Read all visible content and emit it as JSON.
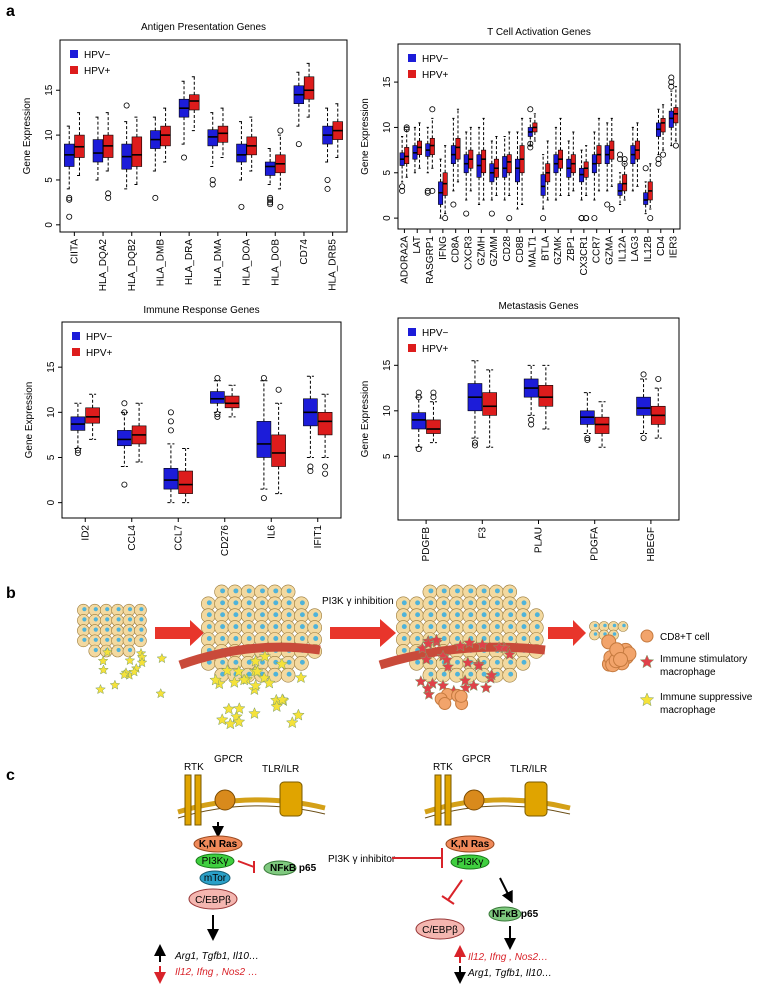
{
  "panels": [
    "a",
    "b",
    "c"
  ],
  "chart_data": [
    {
      "type": "box",
      "title": "Antigen Presentation Genes",
      "y_label": "Gene Expression",
      "legend": "top-left",
      "categories": [
        "CIITA",
        "HLA_DQA2",
        "HLA_DQB2",
        "HLA_DMB",
        "HLA_DRA",
        "HLA_DMA",
        "HLA_DOA",
        "HLA_DOB",
        "CD74",
        "HLA_DRB5"
      ],
      "ylim": [
        -0.8,
        20.6
      ],
      "yticks": [
        0,
        5,
        10,
        15
      ],
      "series": [
        {
          "name": "HPV−",
          "color": "#1c1cd9",
          "values": [
            [
              4,
              6.5,
              7.8,
              9,
              11
            ],
            [
              5,
              7,
              8,
              9.5,
              12
            ],
            [
              4,
              6.2,
              7.6,
              9,
              11.5
            ],
            [
              6,
              8.5,
              9.5,
              10.5,
              12
            ],
            [
              9,
              12,
              13,
              14,
              16
            ],
            [
              6.5,
              8.8,
              9.8,
              10.6,
              12.5
            ],
            [
              5,
              7,
              7.8,
              9,
              11.5
            ],
            [
              4.5,
              5.5,
              6.5,
              7,
              8.5
            ],
            [
              11,
              13.5,
              14.5,
              15.5,
              17
            ],
            [
              7,
              9,
              10,
              11,
              13
            ]
          ],
          "outliers": [
            [
              3,
              2.8,
              0.9
            ],
            [],
            [
              13.3
            ],
            [
              3
            ],
            [
              7.5
            ],
            [
              5,
              4.5
            ],
            [
              2
            ],
            [
              3,
              2.8,
              2.5,
              2.3
            ],
            [
              9
            ],
            [
              5,
              4
            ]
          ]
        },
        {
          "name": "HPV+",
          "color": "#dd1c1c",
          "values": [
            [
              5.5,
              7.5,
              8.7,
              10,
              12.5
            ],
            [
              6,
              7.5,
              8.8,
              10,
              12.5
            ],
            [
              4.5,
              6.5,
              7.8,
              9.8,
              12
            ],
            [
              7,
              8.8,
              10,
              11,
              13
            ],
            [
              10.5,
              12.8,
              13.8,
              14.5,
              16.5
            ],
            [
              7.5,
              9.2,
              10.2,
              11,
              13
            ],
            [
              6,
              7.8,
              8.8,
              9.8,
              12
            ],
            [
              4,
              5.8,
              6.8,
              7.8,
              10
            ],
            [
              12,
              14,
              15,
              16.5,
              18
            ],
            [
              7.5,
              9.5,
              10.5,
              11.5,
              13.5
            ]
          ],
          "outliers": [
            [],
            [
              3.5,
              3
            ],
            [],
            [],
            [],
            [],
            [],
            [
              10.5,
              2
            ],
            [],
            []
          ]
        }
      ]
    },
    {
      "type": "box",
      "title": "T Cell Activation Genes",
      "y_label": "Gene Expression",
      "legend": "top-left",
      "categories": [
        "ADORA2A",
        "LAT",
        "RASGRP1",
        "IFNG",
        "CD8A",
        "CXCR3",
        "GZMH",
        "GZMM",
        "CD28",
        "CD8B",
        "MALT1",
        "BTLA",
        "GZMK",
        "ZBP1",
        "CX3CR1",
        "CCR7",
        "GZMA",
        "IL12A",
        "LAG3",
        "IL12B",
        "CD4",
        "IER3"
      ],
      "ylim": [
        -1.2,
        19.2
      ],
      "yticks": [
        0,
        5,
        10,
        15
      ],
      "series": [
        {
          "name": "HPV−",
          "color": "#1c1cd9",
          "values": [
            [
              4,
              5.8,
              6.5,
              7.2,
              9
            ],
            [
              5,
              6.5,
              7.2,
              8,
              10
            ],
            [
              5,
              6.8,
              7.5,
              8.2,
              10
            ],
            [
              0,
              1.5,
              2.8,
              4,
              6.5
            ],
            [
              3,
              6,
              7,
              8,
              11
            ],
            [
              2,
              5,
              6,
              7,
              9.5
            ],
            [
              1.5,
              4.5,
              5.8,
              7,
              10
            ],
            [
              2,
              4,
              5,
              6,
              8.5
            ],
            [
              2,
              4.5,
              5.5,
              6.8,
              9
            ],
            [
              1,
              4,
              5.5,
              6.5,
              9.5
            ],
            [
              8,
              9,
              9.5,
              10,
              11
            ],
            [
              1,
              2.5,
              3.5,
              4.8,
              7
            ],
            [
              2,
              5,
              6,
              7,
              10
            ],
            [
              2.5,
              4.5,
              5.5,
              6.5,
              8.5
            ],
            [
              2,
              4,
              4.8,
              5.5,
              7.5
            ],
            [
              2,
              5,
              6,
              7,
              9.5
            ],
            [
              3,
              6,
              7,
              8,
              10.5
            ],
            [
              1.5,
              2.5,
              3,
              3.8,
              5
            ],
            [
              3,
              6,
              7,
              8,
              10
            ],
            [
              0.5,
              1.5,
              2,
              2.8,
              4
            ],
            [
              7,
              9,
              9.8,
              10.5,
              12
            ],
            [
              8,
              10,
              11,
              11.8,
              14
            ]
          ],
          "outliers": [
            [
              3.5,
              3
            ],
            [],
            [
              3,
              2.8
            ],
            [],
            [
              1.5
            ],
            [
              0.5
            ],
            [],
            [
              0.5
            ],
            [],
            [],
            [
              7.8,
              8.2,
              12
            ],
            [
              0
            ],
            [],
            [],
            [
              0,
              0,
              0
            ],
            [
              0
            ],
            [
              1.5
            ],
            [
              7,
              6.5
            ],
            [],
            [
              5.5
            ],
            [
              6.5,
              6
            ],
            [
              15.5,
              15,
              14.5
            ]
          ]
        },
        {
          "name": "HPV+",
          "color": "#dd1c1c",
          "values": [
            [
              4.5,
              6,
              6.8,
              7.8,
              10
            ],
            [
              5.5,
              7,
              7.8,
              8.5,
              10.5
            ],
            [
              5.5,
              7,
              8,
              8.8,
              11
            ],
            [
              0.5,
              2.5,
              3.8,
              5,
              8
            ],
            [
              4,
              6.5,
              7.8,
              8.8,
              12
            ],
            [
              3,
              5.5,
              6.5,
              7.5,
              10
            ],
            [
              2,
              5,
              6.5,
              7.5,
              11
            ],
            [
              2.5,
              4.5,
              5.5,
              6.5,
              9
            ],
            [
              2.5,
              5,
              6.2,
              7,
              9.5
            ],
            [
              1.5,
              5,
              6.5,
              8,
              11
            ],
            [
              8.5,
              9.5,
              10,
              10.5,
              11.5
            ],
            [
              2,
              4,
              5,
              6,
              8.5
            ],
            [
              2.5,
              5.5,
              6.5,
              7.5,
              11
            ],
            [
              3,
              5,
              6,
              7,
              9.5
            ],
            [
              2.5,
              4.5,
              5.5,
              6.2,
              8
            ],
            [
              3,
              6,
              7,
              8,
              11
            ],
            [
              3.5,
              6.5,
              7.5,
              8.5,
              11
            ],
            [
              2,
              3,
              3.8,
              4.8,
              6
            ],
            [
              3.5,
              6.5,
              7.5,
              8.5,
              10.5
            ],
            [
              1,
              2,
              3,
              4,
              6
            ],
            [
              7.5,
              9.5,
              10.5,
              11,
              12.5
            ],
            [
              8.5,
              10.5,
              11.5,
              12.2,
              14.5
            ]
          ],
          "outliers": [
            [
              10,
              9.8
            ],
            [],
            [
              12,
              3
            ],
            [
              0
            ],
            [],
            [],
            [],
            [],
            [
              0
            ],
            [],
            [],
            [],
            [],
            [],
            [
              0,
              0
            ],
            [],
            [
              1
            ],
            [
              6.5,
              6
            ],
            [],
            [
              0
            ],
            [
              7
            ],
            [
              8
            ]
          ]
        }
      ]
    },
    {
      "type": "box",
      "title": "Immune Response Genes",
      "y_label": "Gene Expression",
      "legend": "top-left",
      "categories": [
        "ID2",
        "CCL4",
        "CCL7",
        "CD276",
        "IL6",
        "IFIT1"
      ],
      "ylim": [
        -1.7,
        20
      ],
      "yticks": [
        0,
        5,
        10,
        15
      ],
      "series": [
        {
          "name": "HPV−",
          "color": "#1c1cd9",
          "values": [
            [
              6,
              8,
              8.7,
              9.5,
              11
            ],
            [
              4,
              6.3,
              7,
              8,
              10
            ],
            [
              0,
              1.5,
              2.5,
              3.8,
              6.5
            ],
            [
              10,
              11,
              11.5,
              12.3,
              13.5
            ],
            [
              1.5,
              5,
              6.5,
              9,
              13.5
            ],
            [
              5,
              8.5,
              10,
              11.5,
              14
            ]
          ],
          "outliers": [
            [
              5.8,
              5.5
            ],
            [
              11,
              10,
              2
            ],
            [
              10,
              9,
              8
            ],
            [
              13.8,
              9.8,
              9.5
            ],
            [
              13.8,
              0.5
            ],
            [
              4,
              3.5
            ]
          ]
        },
        {
          "name": "HPV+",
          "color": "#dd1c1c",
          "values": [
            [
              7,
              8.8,
              9.5,
              10.5,
              12
            ],
            [
              4.5,
              6.5,
              7.5,
              8.5,
              11
            ],
            [
              0,
              1,
              2,
              3.5,
              6
            ],
            [
              9.5,
              10.5,
              11,
              11.8,
              13
            ],
            [
              1,
              4,
              5.5,
              7.5,
              11
            ],
            [
              5,
              7.5,
              9,
              10,
              12
            ]
          ],
          "outliers": [
            [],
            [],
            [],
            [],
            [
              12.5
            ],
            [
              4,
              3.2
            ]
          ]
        }
      ]
    },
    {
      "type": "box",
      "title": "Metastasis Genes",
      "y_label": "Gene Expression",
      "legend": "top-left",
      "categories": [
        "PDGFB",
        "F3",
        "PLAU",
        "PDGFA",
        "HBEGF"
      ],
      "ylim": [
        -2,
        20.2
      ],
      "yticks": [
        5,
        10,
        15
      ],
      "series": [
        {
          "name": "HPV−",
          "color": "#1c1cd9",
          "values": [
            [
              6,
              8,
              9,
              9.8,
              11.5
            ],
            [
              7,
              10,
              11.5,
              13,
              15.5
            ],
            [
              9.5,
              11.5,
              12.5,
              13.5,
              15
            ],
            [
              7.5,
              8.5,
              9.3,
              10,
              12
            ],
            [
              7.5,
              9.5,
              10.3,
              11.5,
              13.5
            ]
          ],
          "outliers": [
            [
              12,
              11.5,
              5.8
            ],
            [
              6.5,
              6.2
            ],
            [
              9,
              8.5
            ],
            [
              7,
              6.8
            ],
            [
              14,
              7
            ]
          ]
        },
        {
          "name": "HPV+",
          "color": "#dd1c1c",
          "values": [
            [
              6.5,
              7.5,
              8,
              9,
              11
            ],
            [
              6,
              9.5,
              10.5,
              12,
              14.5
            ],
            [
              8,
              10.5,
              11.5,
              12.8,
              15
            ],
            [
              6,
              7.5,
              8.5,
              9.3,
              11
            ],
            [
              7,
              8.5,
              9.5,
              10.5,
              12.5
            ]
          ],
          "outliers": [
            [
              12,
              11.5
            ],
            [],
            [],
            [],
            [
              13.5
            ]
          ]
        }
      ]
    }
  ],
  "diagram_b": {
    "step": "PI3K γ inhibition",
    "legend": {
      "cd8": "CD8+T cell",
      "stimulatory": [
        "Immune stimulatory",
        "macrophage"
      ],
      "suppressive": [
        "Immune suppressive",
        "macrophage"
      ]
    }
  },
  "diagram_c": {
    "left": {
      "rtk": "RTK",
      "gpcr": "GPCR",
      "tlr": "TLR/ILR",
      "ras": "K,N Ras",
      "pi3k": "PI3Kγ",
      "mtor": "mTor",
      "nfkb": "NFκB p65",
      "cebp": "C/EBPβ",
      "up": "Arg1, Tgfb1, Il10…",
      "down": "Il12,   Ifng , Nos2 …"
    },
    "inhibitor": "PI3K γ inhibitor",
    "right": {
      "rtk": "RTK",
      "gpcr": "GPCR",
      "tlr": "TLR/ILR",
      "ras": "K,N Ras",
      "pi3k": "PI3Kγ",
      "nfkb": "NFκB p65",
      "cebp": "C/EBPβ",
      "up": "Il12,   Ifng , Nos2…",
      "down": "Arg1, Tgfb1, Il10…"
    }
  }
}
